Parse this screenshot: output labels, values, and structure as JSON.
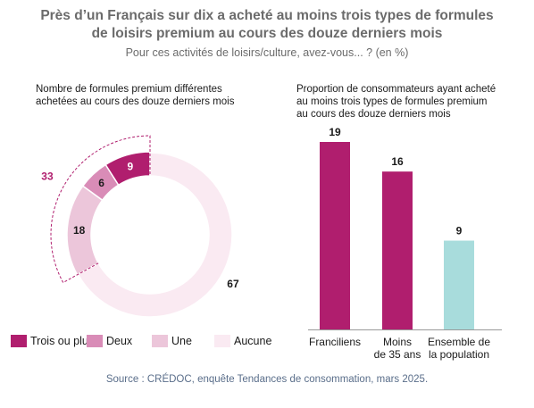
{
  "title_lines": [
    "Près d’un Français sur dix a acheté au moins trois types de formules",
    "de loisirs premium au cours des douze derniers mois"
  ],
  "subtitle": "Pour ces activités de loisirs/culture, avez-vous... ? (en %)",
  "source": "Source : CRÉDOC, enquête Tendances de consommation, mars 2025.",
  "colors": {
    "trois": "#b01e6e",
    "deux": "#d98cb7",
    "une": "#ecc6da",
    "aucune": "#faeaf2",
    "ensemble": "#a8dcdc",
    "highlight": "#b01e6e"
  },
  "chart_data": [
    {
      "type": "pie",
      "title_lines": [
        "Nombre de formules premium différentes",
        "achetées au cours des douze derniers mois"
      ],
      "slices": [
        {
          "label": "Trois ou plus",
          "value": 9,
          "color_key": "trois"
        },
        {
          "label": "Deux",
          "value": 6,
          "color_key": "deux"
        },
        {
          "label": "Une",
          "value": 18,
          "color_key": "une"
        },
        {
          "label": "Aucune",
          "value": 67,
          "color_key": "aucune"
        }
      ],
      "highlight_total": 33
    },
    {
      "type": "bar",
      "title_lines": [
        "Proportion de consommateurs ayant acheté",
        "au moins trois types de formules premium",
        "au cours des douze derniers mois"
      ],
      "categories": [
        [
          "Franciliens"
        ],
        [
          "Moins",
          "de 35 ans"
        ],
        [
          "Ensemble de",
          "la population"
        ]
      ],
      "values": [
        19,
        16,
        9
      ],
      "color_keys": [
        "trois",
        "trois",
        "ensemble"
      ],
      "ylim": [
        0,
        20
      ]
    }
  ]
}
